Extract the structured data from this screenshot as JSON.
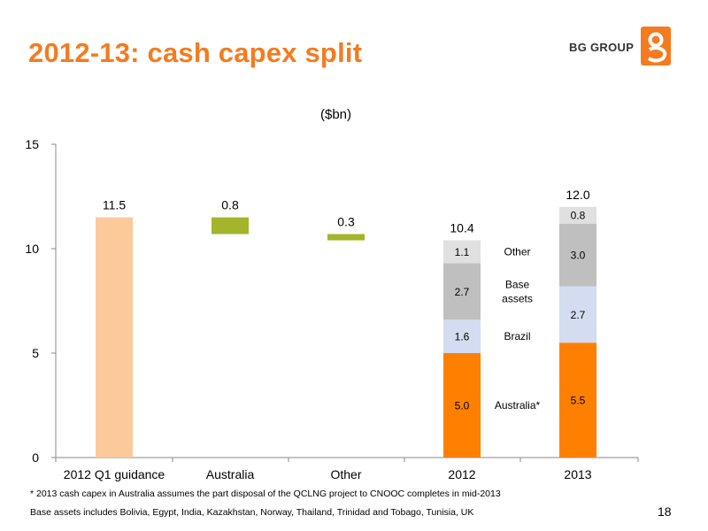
{
  "slide": {
    "title": "2012-13: cash capex split",
    "brand": "BG GROUP",
    "page_number": "18",
    "footnote_1": "* 2013 cash capex in Australia assumes the part disposal of the QCLNG project to CNOOC completes in mid-2013",
    "footnote_2": "Base assets includes Bolivia, Egypt, India, Kazakhstan, Norway, Thailand, Trinidad and Tobago, Tunisia, UK"
  },
  "colors": {
    "accent": "#f47b20",
    "guidance": "#fcc99a",
    "green": "#a3b52a",
    "australia": "#ff8000",
    "brazil": "#d3dcf0",
    "base_assets": "#bfbfbf",
    "other": "#e0e0e0"
  },
  "chart_data": {
    "type": "bar",
    "subtype": "waterfall-stacked",
    "unit_label": "($bn)",
    "ylim": [
      0,
      15
    ],
    "yticks": [
      0,
      5,
      10,
      15
    ],
    "grid": false,
    "categories": [
      "2012 Q1 guidance",
      "Australia",
      "Other",
      "2012",
      "2013"
    ],
    "floating_bars": [
      {
        "category": "2012 Q1 guidance",
        "base": 0,
        "value": 11.5,
        "label": "11.5",
        "color": "guidance"
      },
      {
        "category": "Australia",
        "base": 10.7,
        "value": 0.8,
        "label": "0.8",
        "color": "green"
      },
      {
        "category": "Other",
        "base": 10.4,
        "value": 0.3,
        "label": "0.3",
        "color": "green"
      }
    ],
    "stacked_bars": [
      {
        "category": "2012",
        "total_label": "10.4",
        "segments": [
          {
            "name": "Australia*",
            "value": 5.0,
            "label": "5.0"
          },
          {
            "name": "Brazil",
            "value": 1.6,
            "label": "1.6"
          },
          {
            "name": "Base assets",
            "value": 2.7,
            "label": "2.7"
          },
          {
            "name": "Other",
            "value": 1.1,
            "label": "1.1"
          }
        ]
      },
      {
        "category": "2013",
        "total_label": "12.0",
        "segments": [
          {
            "name": "Australia*",
            "value": 5.5,
            "label": "5.5"
          },
          {
            "name": "Brazil",
            "value": 2.7,
            "label": "2.7"
          },
          {
            "name": "Base assets",
            "value": 3.0,
            "label": "3.0"
          },
          {
            "name": "Other",
            "value": 0.8,
            "label": "0.8"
          }
        ]
      }
    ],
    "segment_labels": [
      "Other",
      "Base assets",
      "Brazil",
      "Australia*"
    ]
  }
}
